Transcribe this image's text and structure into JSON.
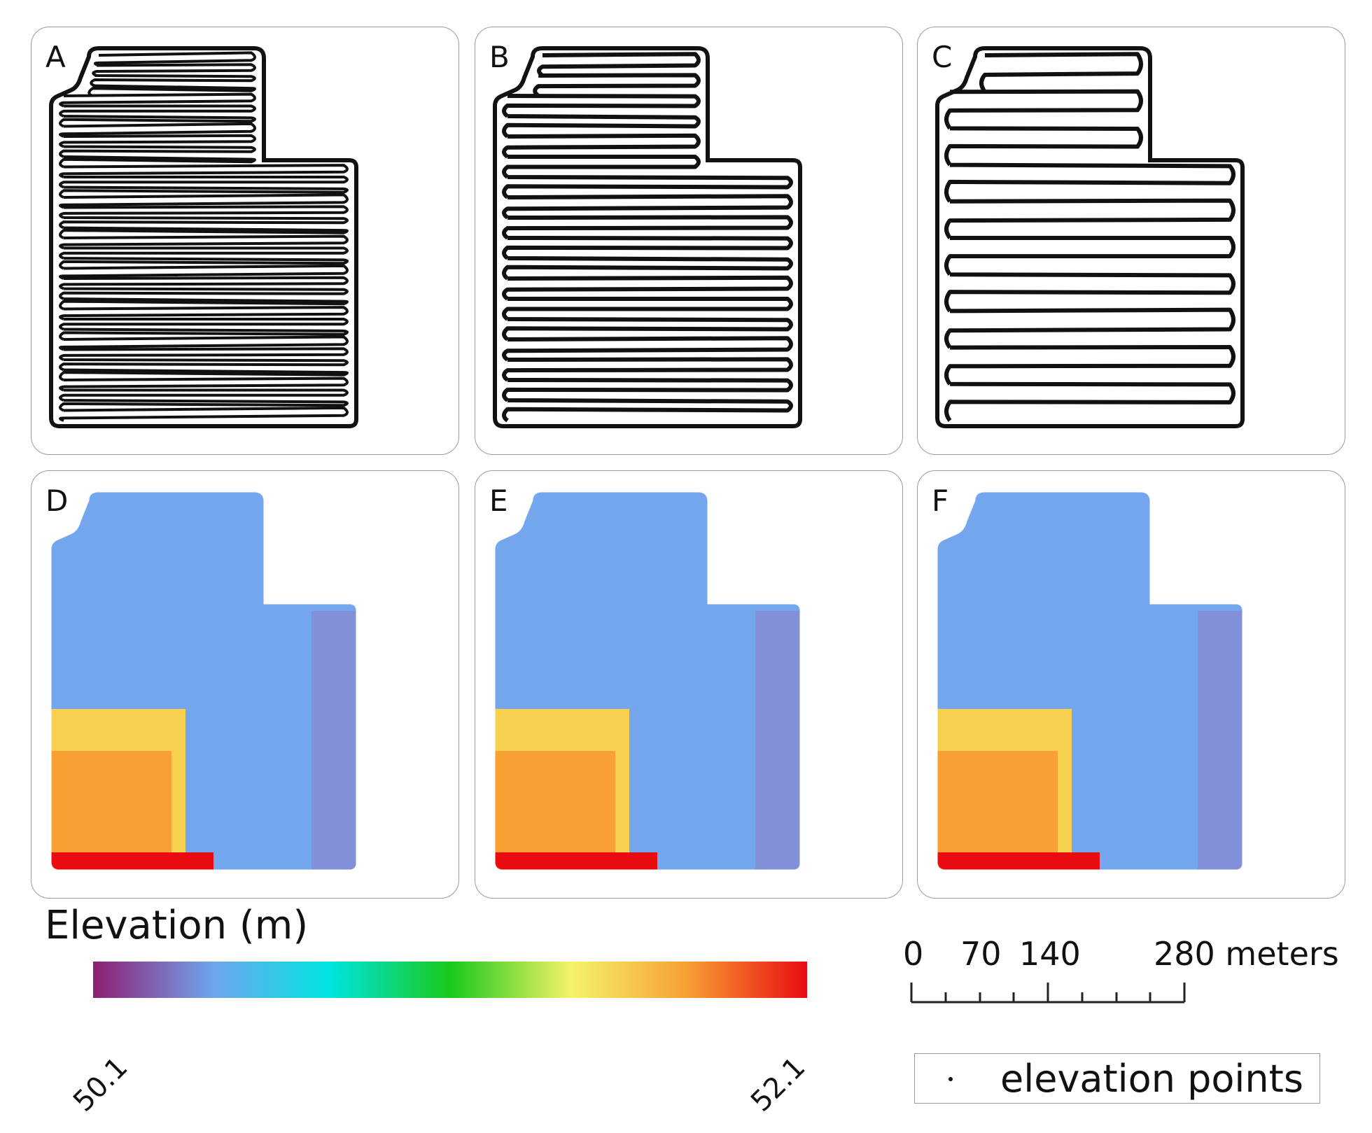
{
  "panels": [
    {
      "label": "A",
      "type": "track",
      "passes": 36
    },
    {
      "label": "B",
      "type": "track",
      "passes": 18
    },
    {
      "label": "C",
      "type": "track",
      "passes": 10
    },
    {
      "label": "D",
      "type": "elevation",
      "style": "smooth"
    },
    {
      "label": "E",
      "type": "elevation",
      "style": "stepped"
    },
    {
      "label": "F",
      "type": "elevation",
      "style": "blocky"
    }
  ],
  "legend": {
    "title": "Elevation (m)",
    "min_label": "50.1",
    "max_label": "52.1",
    "colors": [
      "#8e1f72",
      "#6fa6ef",
      "#00e4e2",
      "#19c81a",
      "#f6f26a",
      "#f8a034",
      "#e80c10"
    ]
  },
  "scale": {
    "labels": [
      "0",
      "70",
      "140",
      "280 meters"
    ]
  },
  "point_legend": {
    "label": "elevation points"
  }
}
